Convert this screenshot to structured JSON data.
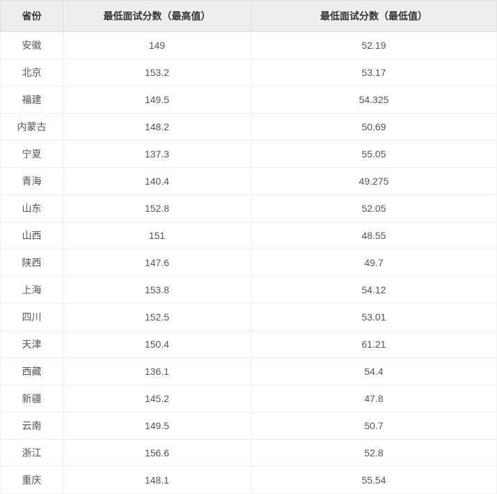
{
  "table": {
    "columns": [
      "省份",
      "最低面试分数（最高值）",
      "最低面试分数（最低值）"
    ],
    "rows": [
      [
        "安徽",
        "149",
        "52.19"
      ],
      [
        "北京",
        "153.2",
        "53.17"
      ],
      [
        "福建",
        "149.5",
        "54.325"
      ],
      [
        "内蒙古",
        "148.2",
        "50.69"
      ],
      [
        "宁夏",
        "137.3",
        "55.05"
      ],
      [
        "青海",
        "140.4",
        "49.275"
      ],
      [
        "山东",
        "152.8",
        "52.05"
      ],
      [
        "山西",
        "151",
        "48.55"
      ],
      [
        "陕西",
        "147.6",
        "49.7"
      ],
      [
        "上海",
        "153.8",
        "54.12"
      ],
      [
        "四川",
        "152.5",
        "53.01"
      ],
      [
        "天津",
        "150.4",
        "61.21"
      ],
      [
        "西藏",
        "136.1",
        "54.4"
      ],
      [
        "新疆",
        "145.2",
        "47.8"
      ],
      [
        "云南",
        "149.5",
        "50.7"
      ],
      [
        "浙江",
        "156.6",
        "52.8"
      ],
      [
        "重庆",
        "148.1",
        "55.54"
      ]
    ],
    "header_bg": "#eeeeee",
    "header_text_color": "#333333",
    "cell_text_color": "#555555",
    "border_color": "#eeeeee",
    "font_family": "Microsoft YaHei",
    "font_size_pt": 11
  }
}
